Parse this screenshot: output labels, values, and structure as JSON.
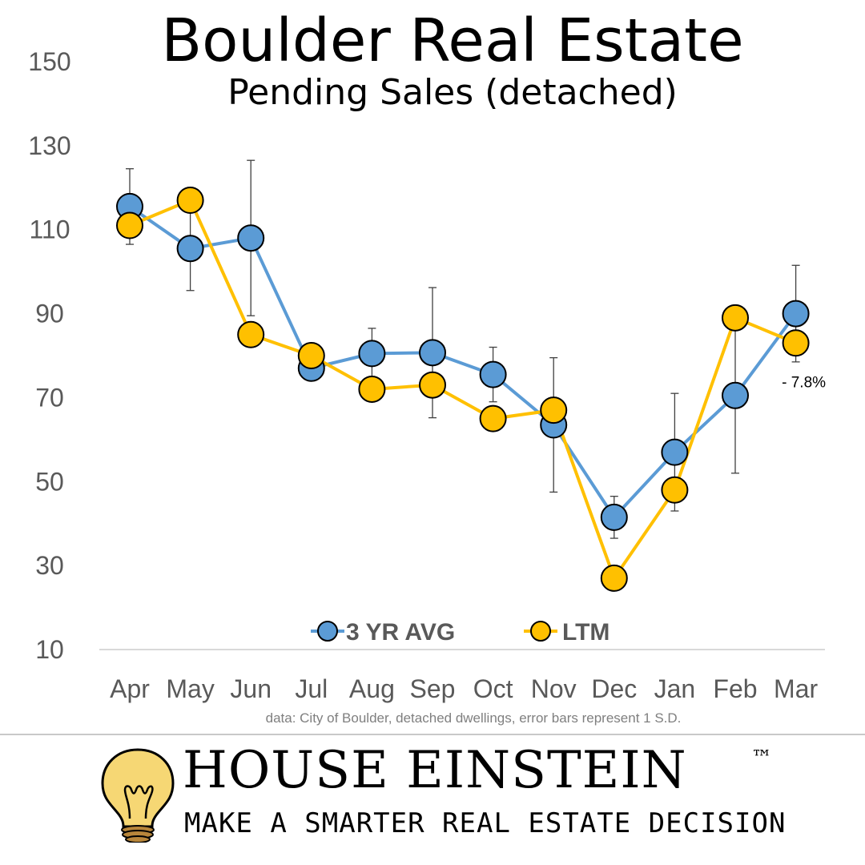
{
  "header": {
    "title": "Boulder Real Estate",
    "subtitle": "Pending Sales (detached)"
  },
  "chart_data": {
    "type": "line",
    "categories": [
      "Apr",
      "May",
      "Jun",
      "Jul",
      "Aug",
      "Sep",
      "Oct",
      "Nov",
      "Dec",
      "Jan",
      "Feb",
      "Mar"
    ],
    "series": [
      {
        "name": "3 YR AVG",
        "color": "#5b9bd5",
        "values": [
          115.5,
          105.5,
          108,
          77,
          80.5,
          80.7,
          75.5,
          63.5,
          41.5,
          57,
          70.5,
          90
        ],
        "error_bars": [
          9,
          10,
          18.5,
          3,
          6,
          15.5,
          6.5,
          16,
          5,
          14,
          18.5,
          11.5
        ]
      },
      {
        "name": "LTM",
        "color": "#ffc000",
        "values": [
          111,
          117,
          85,
          80,
          72,
          73,
          65,
          67,
          27,
          48,
          89,
          83
        ]
      }
    ],
    "y_ticks": [
      10,
      30,
      50,
      70,
      90,
      110,
      130,
      150
    ],
    "ylim": [
      10,
      150
    ],
    "grid": false,
    "legend_position": "bottom-center",
    "annotation": {
      "text": "- 7.8%",
      "series": "3 YR AVG",
      "index": 11
    },
    "source_note": "data: City of Boulder, detached dwellings, error bars represent 1 S.D."
  },
  "brand": {
    "name": "HOUSE EINSTEIN",
    "trademark": "™",
    "tagline": "MAKE A SMARTER REAL ESTATE DECISION",
    "logo_icon": "lightbulb-icon"
  }
}
